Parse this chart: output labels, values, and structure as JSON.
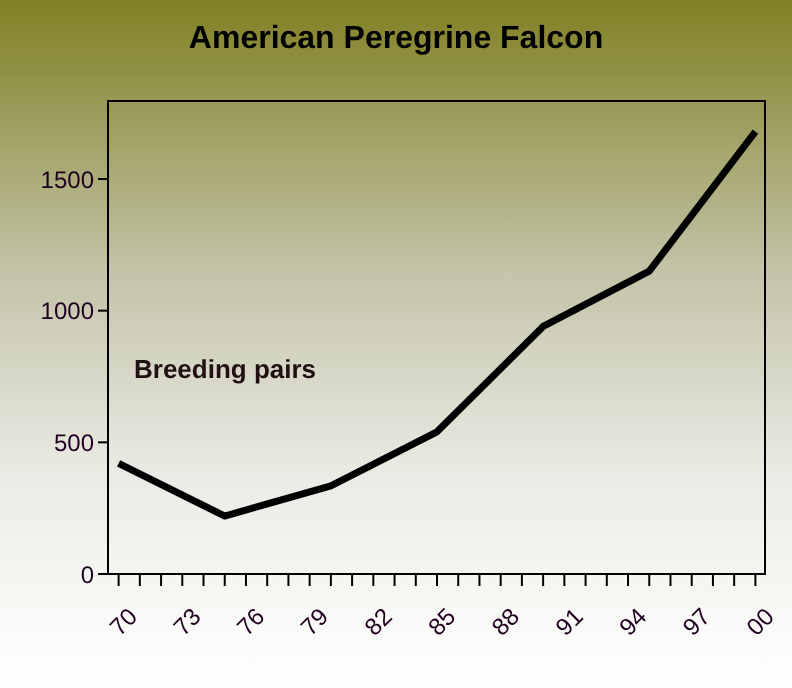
{
  "chart_data": {
    "type": "line",
    "title": "American Peregrine Falcon",
    "annotations": [
      "Breeding pairs"
    ],
    "categories": [
      "70",
      null,
      null,
      "73",
      null,
      null,
      "76",
      null,
      null,
      "79",
      null,
      null,
      "82",
      null,
      null,
      "85",
      null,
      null,
      "88",
      null,
      null,
      "91",
      null,
      null,
      "94",
      null,
      null,
      "97",
      null,
      null,
      "00"
    ],
    "series": [
      {
        "color": "#000000",
        "values": [
          420,
          null,
          null,
          null,
          null,
          220,
          null,
          null,
          null,
          null,
          335,
          null,
          null,
          null,
          null,
          540,
          null,
          null,
          null,
          null,
          940,
          null,
          null,
          null,
          null,
          1150,
          null,
          null,
          null,
          null,
          1680
        ]
      }
    ],
    "ylim": [
      0,
      1800
    ],
    "yticks": [
      0,
      500,
      1000,
      1500
    ],
    "marker": "none",
    "grid": false
  }
}
